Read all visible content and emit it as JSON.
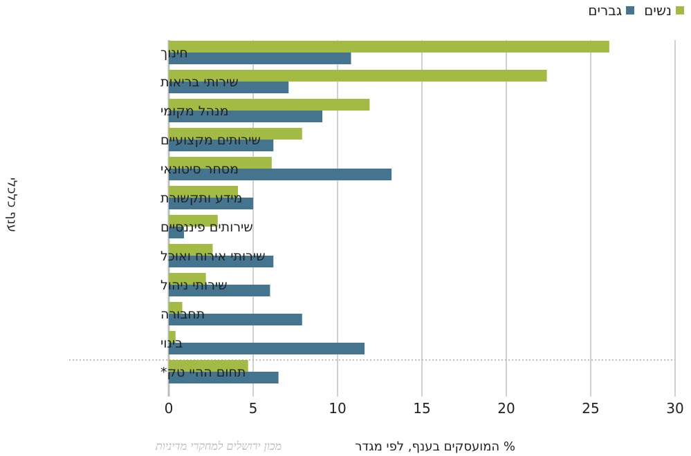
{
  "chart_data": {
    "type": "bar",
    "orientation": "horizontal",
    "categories": [
      "חינוך",
      "שירותי בריאות",
      "מנהל מקומי",
      "שירותים מקצועיים",
      "מסחר סיטונאי",
      "מידע ותקשורת",
      "שירותים פיננסיים",
      "שירותי אירוח ואוכל",
      "שירותי ניהול",
      "תחבורה",
      "בינוי",
      "תחום ההיי טק*"
    ],
    "series": [
      {
        "name": "נשים",
        "color": "#a3ba45",
        "values": [
          26.1,
          22.4,
          11.9,
          7.9,
          6.1,
          4.1,
          2.9,
          2.6,
          2.2,
          0.8,
          0.4,
          4.7
        ]
      },
      {
        "name": "גברים",
        "color": "#45748f",
        "values": [
          10.8,
          7.1,
          9.1,
          6.2,
          13.2,
          5.0,
          0.9,
          6.2,
          6.0,
          7.9,
          11.6,
          6.5
        ]
      }
    ],
    "xlim": [
      0,
      30
    ],
    "xticks": [
      "0",
      "5",
      "10",
      "15",
      "20",
      "25",
      "30"
    ],
    "xlabel": "% המועסקים בענף, לפי מגדר",
    "ylabel": "ענף כלכלי",
    "legend_position": "top-right",
    "grid": true,
    "separator_before_last": true
  },
  "watermark": "מכון ירושלים למחקרי מדיניות"
}
